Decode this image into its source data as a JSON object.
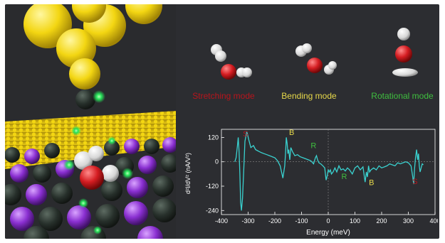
{
  "modes": {
    "stretching": "Stretching mode",
    "bending": "Bending mode",
    "rotational": "Rotational mode"
  },
  "colors": {
    "stretching": "#b8141c",
    "bending": "#e6d84a",
    "rotational": "#3fbf3f",
    "curve": "#3ad1cf",
    "background": "#2c2d31"
  },
  "chart_data": {
    "type": "line",
    "xlabel": "Energy (meV)",
    "ylabel": "d²I/dV² (nA/V²)",
    "xlim": [
      -400,
      400
    ],
    "ylim": [
      -260,
      160
    ],
    "xticks": [
      -400,
      -300,
      -200,
      -100,
      0,
      100,
      200,
      300,
      400
    ],
    "yticks": [
      120,
      0,
      -120,
      -240
    ],
    "series": [
      {
        "x": [
          -350,
          -345,
          -340,
          -337,
          -334,
          -331,
          -328,
          -325,
          -321,
          -317,
          -312,
          -305,
          -298,
          -290,
          -280,
          -272,
          -265,
          -258,
          -250,
          -240,
          -230,
          -220,
          -210,
          -200,
          -190,
          -180,
          -170,
          -163,
          -160,
          -157,
          -154,
          -151,
          -148,
          -144,
          -140,
          -134,
          -125,
          -115,
          -105,
          -95,
          -85,
          -75,
          -65,
          -55,
          -48,
          -44,
          -40,
          -35,
          -28,
          -20,
          -13,
          -8,
          -4,
          0,
          4,
          8,
          12,
          18,
          25,
          32,
          40,
          48,
          56,
          64,
          72,
          80,
          90,
          100,
          110,
          120,
          130,
          138,
          143,
          147,
          151,
          155,
          160,
          170,
          180,
          190,
          200,
          210,
          220,
          230,
          240,
          250,
          260,
          270,
          280,
          290,
          300,
          310,
          316,
          320,
          323,
          327,
          331,
          335,
          338,
          341,
          344,
          348,
          352,
          356
        ],
        "y": [
          0,
          20,
          80,
          120,
          50,
          -60,
          -200,
          -240,
          -180,
          -60,
          100,
          150,
          110,
          70,
          80,
          60,
          55,
          50,
          45,
          40,
          35,
          30,
          25,
          20,
          5,
          -20,
          -80,
          -20,
          40,
          120,
          90,
          40,
          60,
          10,
          70,
          50,
          30,
          35,
          25,
          20,
          15,
          10,
          5,
          -10,
          20,
          30,
          10,
          -5,
          -10,
          -20,
          -30,
          -90,
          -70,
          -40,
          -50,
          -40,
          -60,
          -50,
          -30,
          -50,
          -20,
          -40,
          -35,
          -45,
          -30,
          -40,
          -60,
          -30,
          -20,
          -40,
          -25,
          -100,
          -50,
          -75,
          -20,
          -50,
          -40,
          -30,
          -40,
          -20,
          -30,
          -25,
          -20,
          -10,
          -15,
          -20,
          -5,
          -10,
          -5,
          0,
          -5,
          -20,
          -70,
          -110,
          -40,
          20,
          60,
          10,
          40,
          -20,
          -50,
          -30,
          -10,
          -15
        ]
      }
    ],
    "annotations": [
      {
        "text": "S",
        "x": -310,
        "y": 125
      },
      {
        "text": "B",
        "x": -137,
        "y": 132
      },
      {
        "text": "R",
        "x": -55,
        "y": 68
      },
      {
        "text": "R",
        "x": 60,
        "y": -85
      },
      {
        "text": "B",
        "x": 162,
        "y": -115
      },
      {
        "text": "S",
        "x": 325,
        "y": -110
      }
    ]
  }
}
